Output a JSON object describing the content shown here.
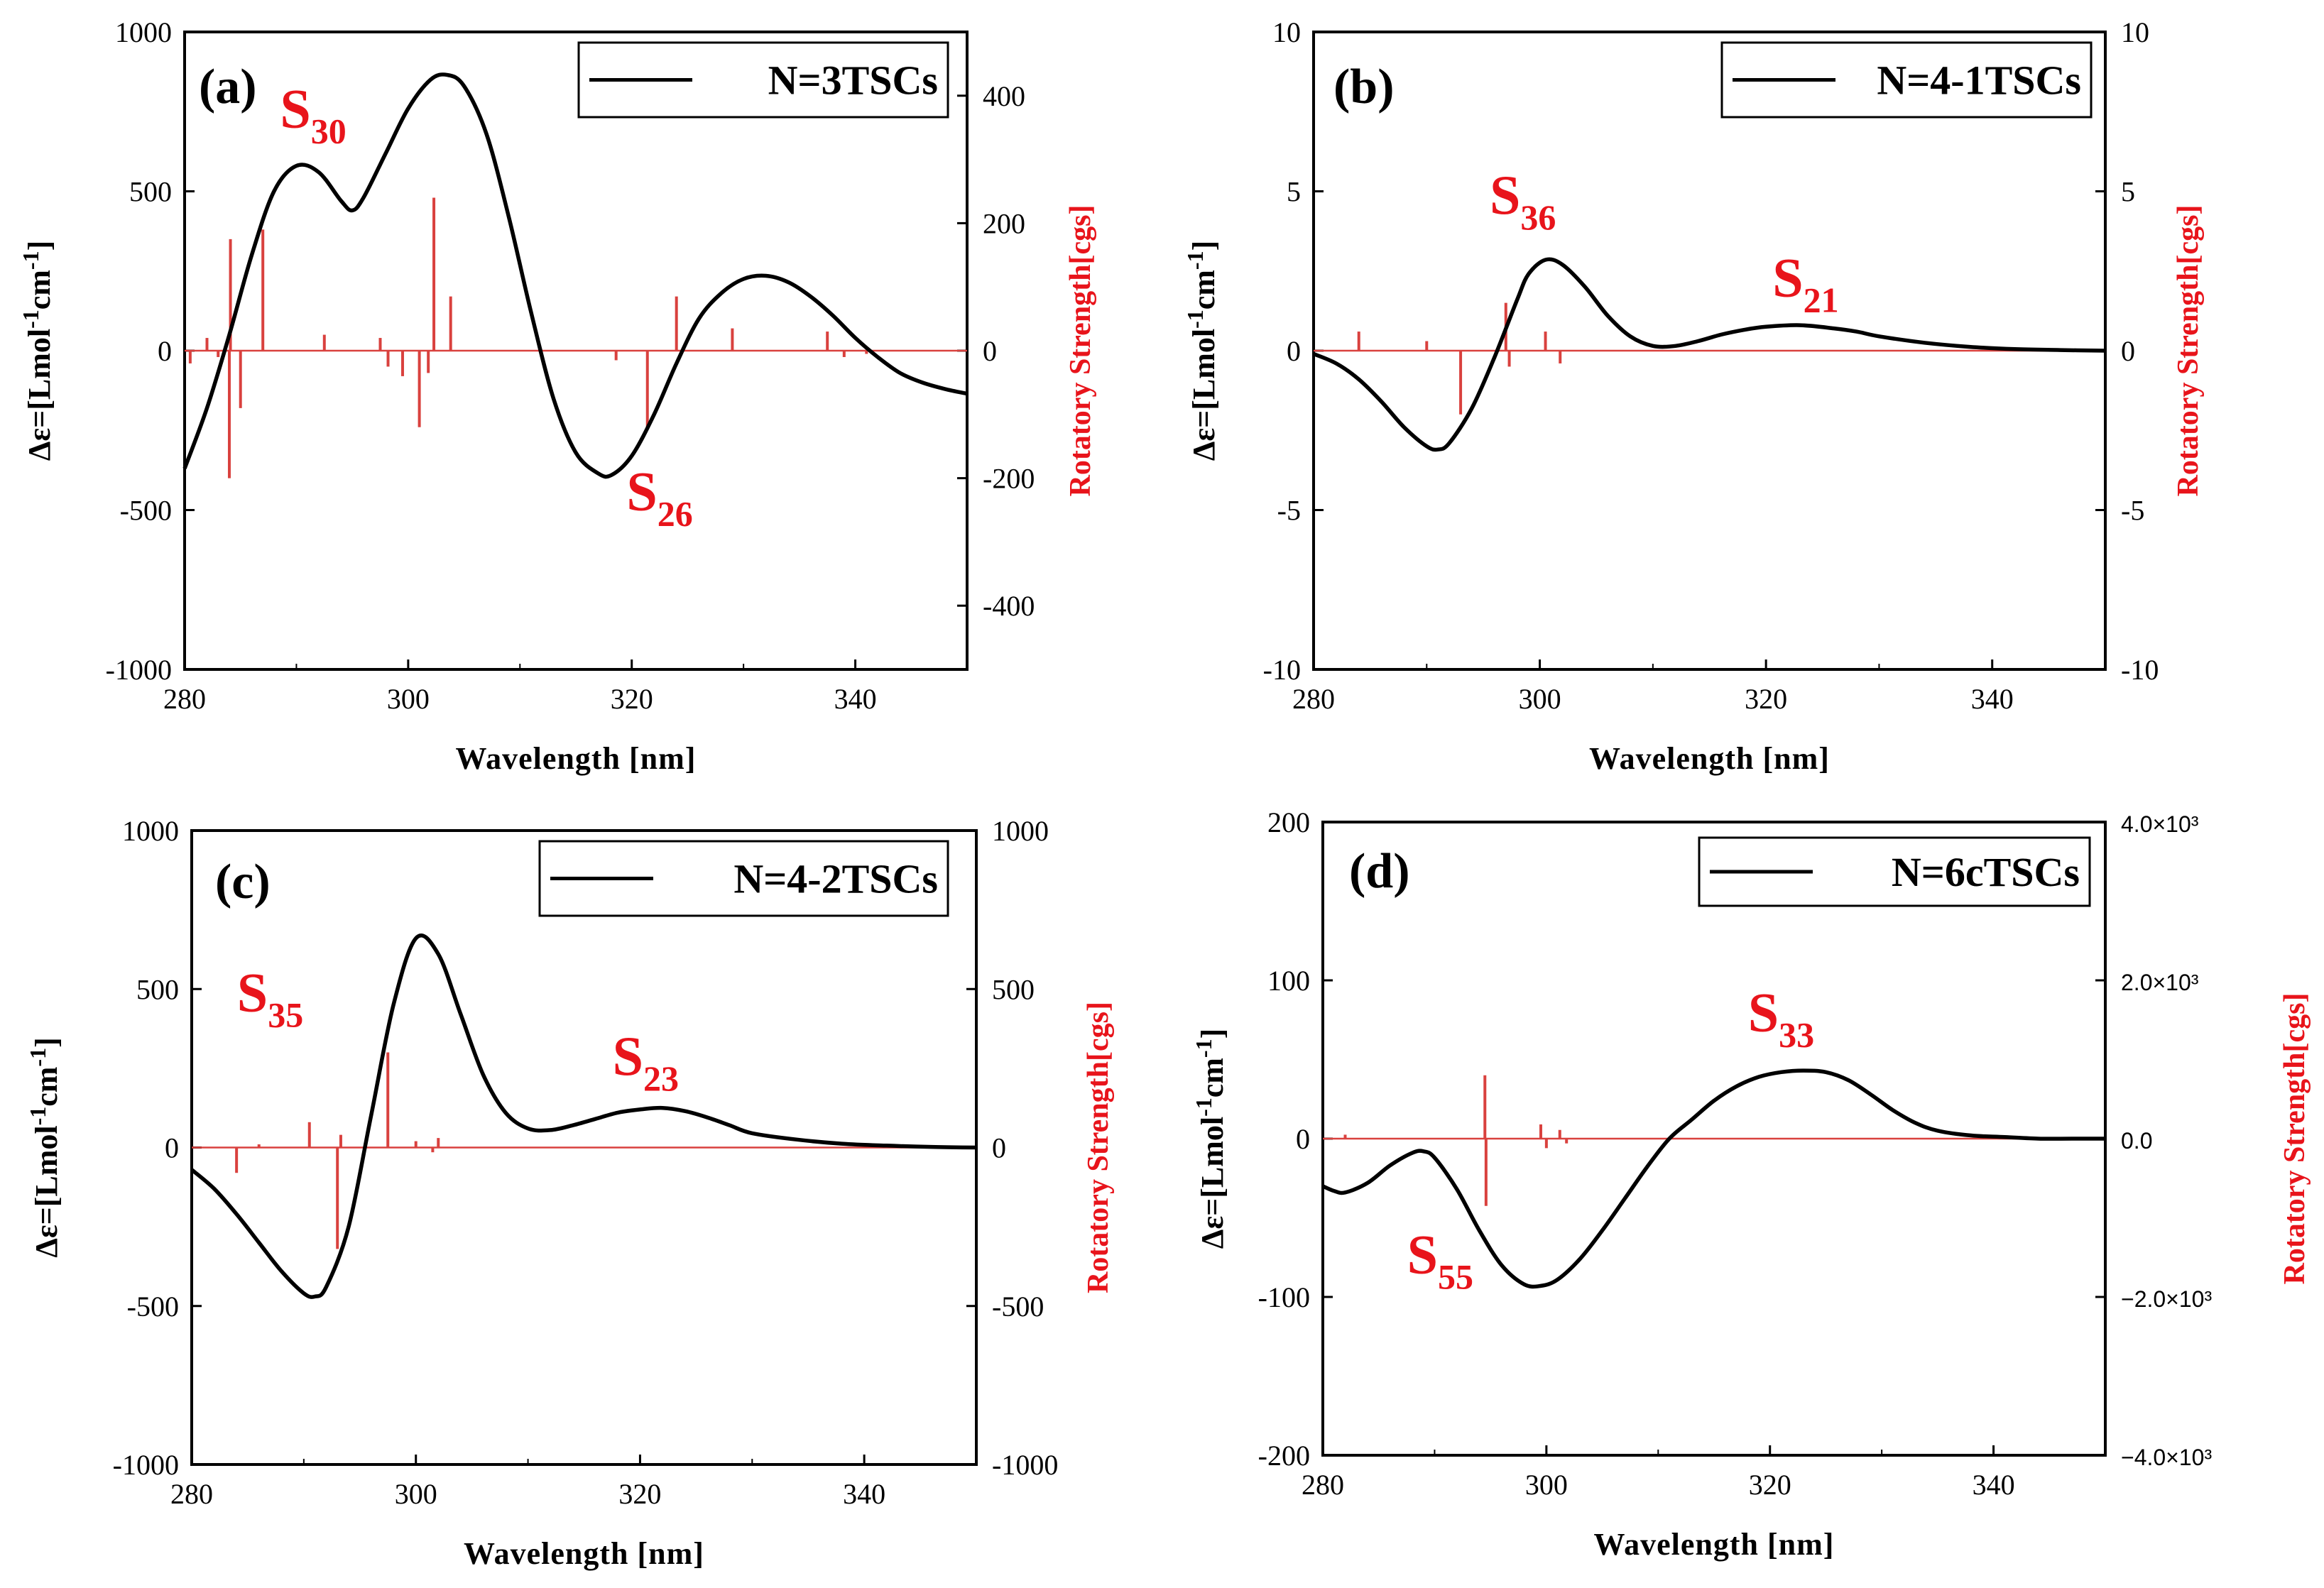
{
  "colors": {
    "curve": "#000000",
    "sticks": "#d9413e",
    "annotation": "#e8141b",
    "y2label": "#e8141b",
    "axis": "#000000"
  },
  "chart_data": [
    {
      "panel": "(a)",
      "type": "line",
      "legend": "N=3TSCs",
      "xlabel": "Wavelength [nm]",
      "ylabel_parts": [
        "Δε=[Lmol",
        "-1",
        "cm",
        "-1",
        "]"
      ],
      "y2label": "Rotatory Strength[cgs]",
      "xlim": [
        280,
        350
      ],
      "ylim": [
        -1000,
        1000
      ],
      "y2lim": [
        -500,
        500
      ],
      "x_ticks": [
        280,
        300,
        320,
        340
      ],
      "x_tick_labels": [
        "280",
        "300",
        "320",
        "340"
      ],
      "y_ticks": [
        -1000,
        -500,
        0,
        500,
        1000
      ],
      "y_tick_labels": [
        "-1000",
        "-500",
        "0",
        "500",
        "1000"
      ],
      "y2_ticks": [
        -400,
        -200,
        0,
        200,
        400
      ],
      "y2_tick_labels": [
        "-400",
        "-200",
        "0",
        "200",
        "400"
      ],
      "series": [
        {
          "name": "N=3TSCs",
          "x": [
            280,
            282,
            284,
            286,
            288,
            290,
            292,
            294,
            295,
            296,
            298,
            300,
            302,
            303.5,
            305,
            307,
            309,
            311,
            313,
            315,
            317,
            318.2,
            320,
            322,
            324,
            326,
            328,
            330,
            332,
            334,
            336,
            338,
            340,
            342,
            344,
            346,
            348,
            350
          ],
          "y": [
            -370,
            -180,
            50,
            300,
            500,
            580,
            560,
            470,
            440,
            480,
            620,
            760,
            850,
            865,
            830,
            680,
            420,
            120,
            -150,
            -320,
            -385,
            -390,
            -330,
            -200,
            -40,
            100,
            180,
            225,
            235,
            215,
            170,
            110,
            40,
            -20,
            -70,
            -100,
            -120,
            -135
          ]
        }
      ],
      "sticks": {
        "name": "Rotatory Strength",
        "x": [
          280.5,
          282,
          283,
          284,
          284.1,
          285,
          287,
          292.5,
          297.5,
          298.2,
          299.5,
          301,
          301.8,
          302.3,
          303.8,
          318.6,
          321.4,
          324,
          329,
          337.5,
          339,
          341
        ],
        "y": [
          -20,
          20,
          -10,
          -200,
          175,
          -90,
          190,
          25,
          20,
          -25,
          -40,
          -120,
          -35,
          240,
          85,
          -15,
          -120,
          85,
          35,
          30,
          -10,
          -5
        ]
      },
      "annotations": [
        {
          "main": "S",
          "sub": "30",
          "x": 291.5,
          "y": 700
        },
        {
          "main": "S",
          "sub": "26",
          "x": 322.5,
          "y": -500
        }
      ]
    },
    {
      "panel": "(b)",
      "type": "line",
      "legend": "N=4-1TSCs",
      "xlabel": "Wavelength [nm]",
      "ylabel_parts": [
        "Δε=[Lmol",
        "-1",
        "cm",
        "-1",
        "]"
      ],
      "y2label": "Rotatory Strength[cgs]",
      "xlim": [
        280,
        350
      ],
      "ylim": [
        -10,
        10
      ],
      "y2lim": [
        -10,
        10
      ],
      "x_ticks": [
        280,
        300,
        320,
        340
      ],
      "x_tick_labels": [
        "280",
        "300",
        "320",
        "340"
      ],
      "y_ticks": [
        -10,
        -5,
        0,
        5,
        10
      ],
      "y_tick_labels": [
        "-10",
        "-5",
        "0",
        "5",
        "10"
      ],
      "y2_ticks": [
        -10,
        -5,
        0,
        5,
        10
      ],
      "y2_tick_labels": [
        "-10",
        "-5",
        "0",
        "5",
        "10"
      ],
      "series": [
        {
          "name": "N=4-1TSCs",
          "x": [
            280,
            282,
            284,
            286,
            288,
            290,
            291,
            292,
            294,
            296,
            298,
            299,
            300.5,
            302,
            304,
            306,
            308,
            310,
            312,
            314,
            316,
            318,
            320,
            323,
            326,
            328,
            330,
            334,
            338,
            342,
            346,
            350
          ],
          "y": [
            -0.1,
            -0.4,
            -0.9,
            -1.6,
            -2.4,
            -3.0,
            -3.1,
            -2.9,
            -1.8,
            -0.2,
            1.6,
            2.4,
            2.85,
            2.7,
            2.0,
            1.1,
            0.45,
            0.15,
            0.15,
            0.3,
            0.5,
            0.65,
            0.75,
            0.8,
            0.7,
            0.6,
            0.45,
            0.25,
            0.12,
            0.05,
            0.02,
            0.0
          ]
        }
      ],
      "sticks": {
        "name": "Rotatory Strength",
        "x": [
          284,
          290,
          293,
          297,
          297.3,
          300.5,
          301.8
        ],
        "y": [
          0.6,
          0.3,
          -2.0,
          1.5,
          -0.5,
          0.6,
          -0.4
        ]
      },
      "annotations": [
        {
          "main": "S",
          "sub": "36",
          "x": 298.5,
          "y": 4.3
        },
        {
          "main": "S",
          "sub": "21",
          "x": 323.5,
          "y": 1.7
        }
      ]
    },
    {
      "panel": "(c)",
      "type": "line",
      "legend": "N=4-2TSCs",
      "xlabel": "Wavelength [nm]",
      "ylabel_parts": [
        "Δε=[Lmol",
        "-1",
        "cm",
        "-1",
        "]"
      ],
      "y2label": "Rotatory Strength[cgs]",
      "xlim": [
        280,
        350
      ],
      "ylim": [
        -1000,
        1000
      ],
      "y2lim": [
        -1000,
        1000
      ],
      "x_ticks": [
        280,
        300,
        320,
        340
      ],
      "x_tick_labels": [
        "280",
        "300",
        "320",
        "340"
      ],
      "y_ticks": [
        -1000,
        -500,
        0,
        500,
        1000
      ],
      "y_tick_labels": [
        "-1000",
        "-500",
        "0",
        "500",
        "1000"
      ],
      "y2_ticks": [
        -1000,
        -500,
        0,
        500,
        1000
      ],
      "y2_tick_labels": [
        "-1000",
        "-500",
        "0",
        "500",
        "1000"
      ],
      "series": [
        {
          "name": "N=4-2TSCs",
          "x": [
            280,
            282,
            284,
            286,
            288,
            290,
            291,
            292,
            294,
            296,
            298,
            300,
            302,
            304,
            306,
            308,
            310,
            312,
            314,
            316,
            318,
            320,
            322,
            324,
            326,
            328,
            330,
            334,
            338,
            342,
            346,
            350
          ],
          "y": [
            -70,
            -130,
            -210,
            -300,
            -390,
            -460,
            -470,
            -440,
            -250,
            100,
            450,
            660,
            610,
            420,
            230,
            110,
            60,
            55,
            70,
            90,
            110,
            120,
            125,
            115,
            95,
            70,
            45,
            25,
            12,
            6,
            2,
            0
          ],
          "note": "curve"
        }
      ],
      "sticks": {
        "name": "Rotatory Strength",
        "x": [
          284,
          286,
          290.5,
          293,
          293.3,
          297.5,
          300,
          301.5,
          302
        ],
        "y": [
          -80,
          10,
          80,
          -320,
          40,
          300,
          20,
          -15,
          30
        ]
      },
      "annotations": [
        {
          "main": "S",
          "sub": "35",
          "x": 287,
          "y": 430
        },
        {
          "main": "S",
          "sub": "23",
          "x": 320.5,
          "y": 230
        }
      ]
    },
    {
      "panel": "(d)",
      "type": "line",
      "legend": "N=6cTSCs",
      "xlabel": "Wavelength [nm]",
      "ylabel_parts": [
        "Δε=[Lmol",
        "-1",
        "cm",
        "-1",
        "]"
      ],
      "y2label": "Rotatory Strength[cgs]",
      "xlim": [
        280,
        350
      ],
      "ylim": [
        -200,
        200
      ],
      "y2lim": [
        -4000,
        4000
      ],
      "x_ticks": [
        280,
        300,
        320,
        340
      ],
      "x_tick_labels": [
        "280",
        "300",
        "320",
        "340"
      ],
      "y_ticks": [
        -200,
        -100,
        0,
        100,
        200
      ],
      "y_tick_labels": [
        "-200",
        "-100",
        "0",
        "100",
        "200"
      ],
      "y2_ticks": [
        -4000,
        -2000,
        0,
        2000,
        4000
      ],
      "y2_tick_labels": [
        "−4.0×10³",
        "−2.0×10³",
        "0.0",
        "2.0×10³",
        "4.0×10³"
      ],
      "series": [
        {
          "name": "N=6cTSCs",
          "x": [
            280,
            281,
            282,
            284,
            286,
            288,
            289,
            290,
            292,
            294,
            296,
            298,
            299.5,
            301,
            303,
            305,
            307,
            309,
            311,
            313,
            315,
            317,
            319,
            321,
            323,
            325,
            327,
            329,
            331,
            333,
            335,
            338,
            341,
            344,
            347,
            350
          ],
          "y": [
            -30,
            -33,
            -34,
            -28,
            -17,
            -9,
            -8,
            -12,
            -32,
            -58,
            -80,
            -92,
            -93,
            -89,
            -76,
            -58,
            -38,
            -18,
            0,
            12,
            24,
            33,
            39,
            42,
            43,
            42,
            37,
            28,
            18,
            10,
            5,
            2,
            1,
            0,
            0,
            0
          ],
          "note": "curve"
        }
      ],
      "sticks": {
        "name": "Rotatory Strength",
        "x": [
          282,
          294.5,
          294.6,
          299.5,
          300,
          301.2,
          301.8
        ],
        "y": [
          50,
          800,
          -850,
          180,
          -120,
          110,
          -60
        ]
      },
      "annotations": [
        {
          "main": "S",
          "sub": "33",
          "x": 321,
          "y": 68
        },
        {
          "main": "S",
          "sub": "55",
          "x": 290.5,
          "y": -85
        }
      ]
    }
  ]
}
